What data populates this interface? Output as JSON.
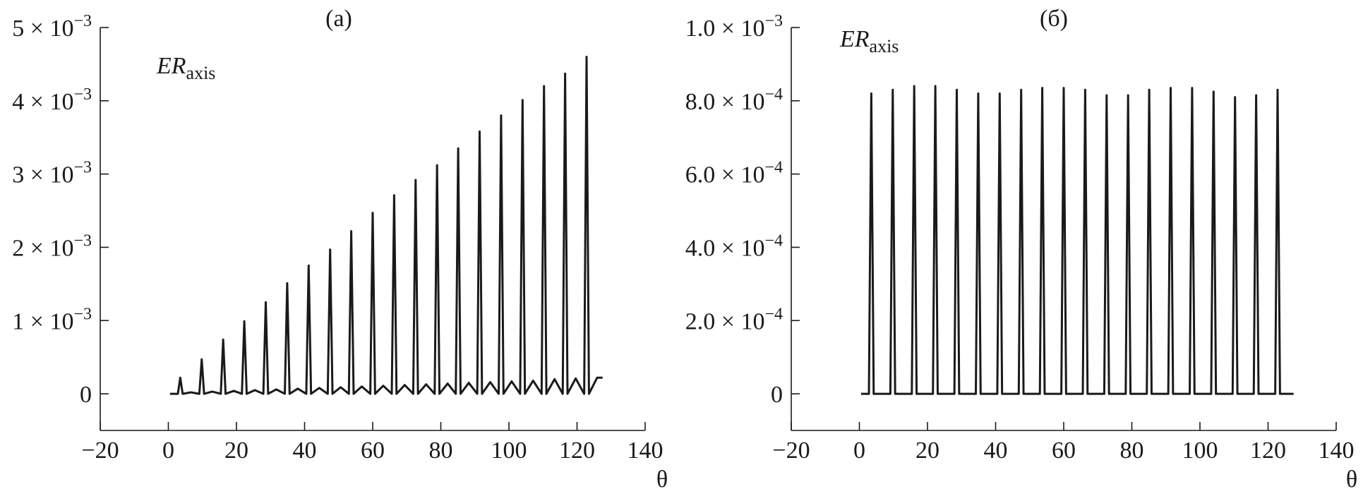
{
  "chart_data": [
    {
      "type": "line",
      "title": "(a)",
      "ylabel": {
        "main": "ER",
        "sub": "axis"
      },
      "xlabel": "θ",
      "color": "#1a1a1a",
      "xlim": [
        -20,
        140
      ],
      "xticks": [
        {
          "value": -20,
          "label": "−20"
        },
        0,
        20,
        40,
        60,
        80,
        100,
        120,
        140
      ],
      "ylim": [
        -0.0005,
        0.005
      ],
      "yticks": [
        0,
        {
          "value": 0.001,
          "label": "1 × 10",
          "exponent": "−3"
        },
        {
          "value": 0.002,
          "label": "2 × 10",
          "exponent": "−3"
        },
        {
          "value": 0.003,
          "label": "3 × 10",
          "exponent": "−3"
        },
        {
          "value": 0.004,
          "label": "4 × 10",
          "exponent": "−3"
        },
        {
          "value": 0.005,
          "label": "5 × 10",
          "exponent": "−3"
        }
      ],
      "x": [
        0.5,
        2.8,
        3.5,
        4.2,
        6.6,
        9.1,
        9.8,
        10.5,
        12.9,
        15.4,
        16.1,
        16.8,
        19.2,
        21.6,
        22.3,
        23.0,
        25.4,
        27.9,
        28.6,
        29.3,
        31.7,
        34.2,
        34.9,
        35.6,
        38.0,
        40.5,
        41.2,
        41.9,
        44.3,
        46.8,
        47.5,
        48.2,
        50.6,
        53.0,
        53.7,
        54.4,
        56.8,
        59.3,
        60.0,
        60.7,
        63.1,
        65.6,
        66.3,
        67.0,
        69.4,
        71.9,
        72.6,
        73.3,
        75.7,
        78.2,
        78.9,
        79.6,
        82.0,
        84.4,
        85.1,
        85.8,
        88.2,
        90.7,
        91.4,
        92.1,
        94.5,
        97.0,
        97.7,
        98.4,
        100.8,
        103.3,
        104.0,
        104.7,
        107.1,
        109.6,
        110.3,
        111.0,
        113.4,
        115.8,
        116.5,
        117.2,
        119.6,
        122.1,
        122.8,
        123.5,
        125.9,
        127.5
      ],
      "values": [
        0,
        0,
        0.00022,
        0,
        2e-05,
        0,
        0.00047,
        0,
        3e-05,
        0,
        0.00074,
        0,
        4e-05,
        0,
        0.00099,
        0,
        5e-05,
        0,
        0.00125,
        0,
        6e-05,
        0,
        0.00151,
        0,
        7e-05,
        0,
        0.00175,
        0,
        8e-05,
        0,
        0.00197,
        0,
        9e-05,
        0,
        0.00222,
        0,
        0.0001,
        0,
        0.00247,
        0,
        0.00011,
        0,
        0.00271,
        0,
        0.00012,
        0,
        0.00292,
        0,
        0.00013,
        0,
        0.00312,
        0,
        0.00014,
        0,
        0.00335,
        0,
        0.00015,
        0,
        0.00358,
        0,
        0.00016,
        0,
        0.0038,
        0,
        0.00017,
        0,
        0.00401,
        0,
        0.00018,
        0,
        0.0042,
        0,
        0.0002,
        0,
        0.00437,
        0,
        0.00021,
        0,
        0.0046,
        0,
        0.00022,
        0.00022
      ]
    },
    {
      "type": "line",
      "title": "(б)",
      "ylabel": {
        "main": "ER",
        "sub": "axis"
      },
      "xlabel": "θ",
      "color": "#1a1a1a",
      "xlim": [
        -20,
        140
      ],
      "xticks": [
        {
          "value": -20,
          "label": "−20"
        },
        0,
        20,
        40,
        60,
        80,
        100,
        120,
        140
      ],
      "ylim": [
        -0.0001,
        0.001
      ],
      "yticks": [
        0,
        {
          "value": 0.0002,
          "label": "2.0 × 10",
          "exponent": "−4"
        },
        {
          "value": 0.0004,
          "label": "4.0 × 10",
          "exponent": "−4"
        },
        {
          "value": 0.0006,
          "label": "6.0 × 10",
          "exponent": "−4"
        },
        {
          "value": 0.0008,
          "label": "8.0 × 10",
          "exponent": "−4"
        },
        {
          "value": 0.001,
          "label": "1.0 × 10",
          "exponent": "−3"
        }
      ],
      "x": [
        0.5,
        2.8,
        3.5,
        4.2,
        9.1,
        9.8,
        10.5,
        15.4,
        16.1,
        16.8,
        21.6,
        22.3,
        23.0,
        27.9,
        28.6,
        29.3,
        34.2,
        34.9,
        35.6,
        40.5,
        41.2,
        41.9,
        46.8,
        47.5,
        48.2,
        53.0,
        53.7,
        54.4,
        59.3,
        60.0,
        60.7,
        65.6,
        66.3,
        67.0,
        71.9,
        72.6,
        73.3,
        78.2,
        78.9,
        79.6,
        84.4,
        85.1,
        85.8,
        90.7,
        91.4,
        92.1,
        97.0,
        97.7,
        98.4,
        103.3,
        104.0,
        104.7,
        109.6,
        110.3,
        111.0,
        115.8,
        116.5,
        117.2,
        122.1,
        122.8,
        123.5,
        127.5
      ],
      "values": [
        0,
        0,
        0.00082,
        0,
        0,
        0.00083,
        0,
        0,
        0.00084,
        0,
        0,
        0.00084,
        0,
        0,
        0.00083,
        0,
        0,
        0.00082,
        0,
        0,
        0.00082,
        0,
        0,
        0.00083,
        0,
        0,
        0.000835,
        0,
        0,
        0.000835,
        0,
        0,
        0.00083,
        0,
        0,
        0.000815,
        0,
        0,
        0.000815,
        0,
        0,
        0.00083,
        0,
        0,
        0.000835,
        0,
        0,
        0.000835,
        0,
        0,
        0.000825,
        0,
        0,
        0.00081,
        0,
        0,
        0.000815,
        0,
        0,
        0.00083,
        0,
        0
      ]
    }
  ]
}
